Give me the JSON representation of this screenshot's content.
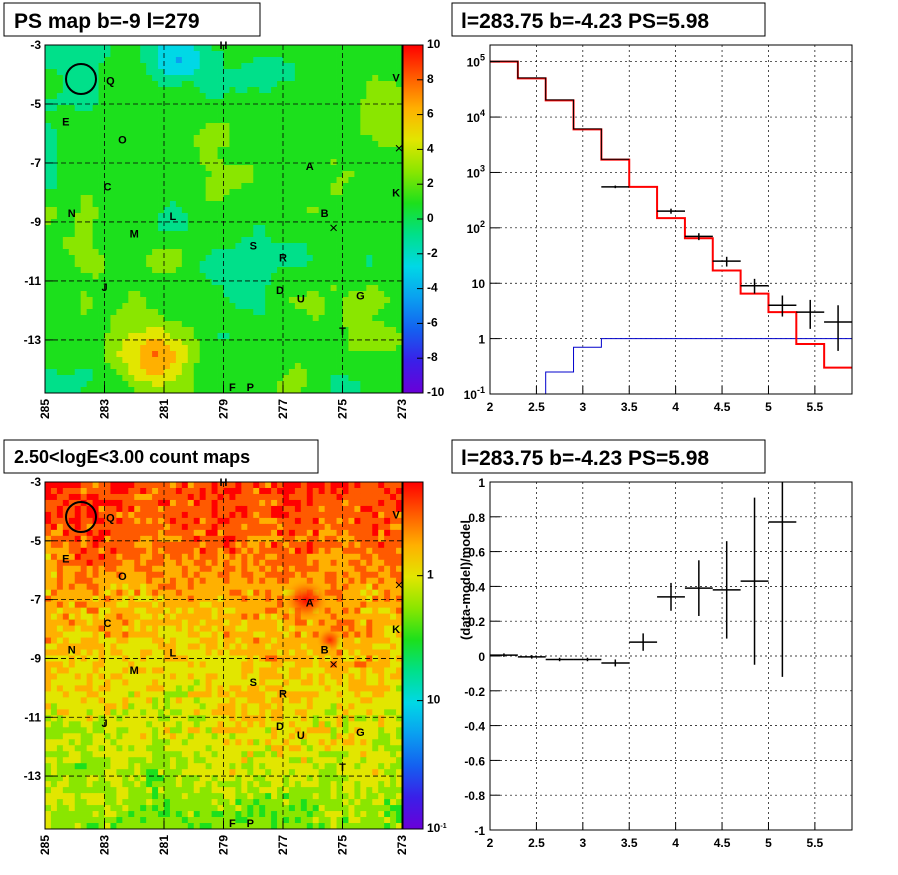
{
  "colors": {
    "hist_data": "#000000",
    "hist_model": "#ff0000",
    "hist_bg": "#0000cc",
    "palette": [
      "#6a00d8",
      "#3a1fe8",
      "#1460f0",
      "#0a9ff0",
      "#00d8e6",
      "#00e08a",
      "#1ce01c",
      "#8ae600",
      "#e2e600",
      "#ffb000",
      "#ff5a00",
      "#ff0000"
    ]
  },
  "chart_data": [
    {
      "type": "heatmap",
      "title": "PS map b=-9 l=279",
      "x_ticks": [
        "285",
        "283",
        "281",
        "279",
        "277",
        "275",
        "273"
      ],
      "y_ticks": [
        "-3",
        "-5",
        "-7",
        "-9",
        "-11",
        "-13"
      ],
      "xlim": [
        285,
        273
      ],
      "ylim": [
        -14.8,
        -3
      ],
      "colorbar_ticks": [
        "10",
        "8",
        "6",
        "4",
        "2",
        "0",
        "-2",
        "-4",
        "-6",
        "-8",
        "-10"
      ],
      "colorbar_range": [
        -10,
        10
      ],
      "sources": [
        {
          "label": "H",
          "l": 279,
          "b": -3
        },
        {
          "label": "Q",
          "l": 282.8,
          "b": -4.2
        },
        {
          "label": "V",
          "l": 273.2,
          "b": -4.1
        },
        {
          "label": "E",
          "l": 284.3,
          "b": -5.6
        },
        {
          "label": "O",
          "l": 282.4,
          "b": -6.2
        },
        {
          "label": "A",
          "l": 276.1,
          "b": -7.1
        },
        {
          "label": "C",
          "l": 282.9,
          "b": -7.8
        },
        {
          "label": "K",
          "l": 273.2,
          "b": -8.0
        },
        {
          "label": "B",
          "l": 275.6,
          "b": -8.7
        },
        {
          "label": "N",
          "l": 284.1,
          "b": -8.7
        },
        {
          "label": "L",
          "l": 280.7,
          "b": -8.8
        },
        {
          "label": "M",
          "l": 282.0,
          "b": -9.4
        },
        {
          "label": "S",
          "l": 278.0,
          "b": -9.8
        },
        {
          "label": "R",
          "l": 277.0,
          "b": -10.2
        },
        {
          "label": "J",
          "l": 283.0,
          "b": -11.2
        },
        {
          "label": "D",
          "l": 277.1,
          "b": -11.3
        },
        {
          "label": "U",
          "l": 276.4,
          "b": -11.6
        },
        {
          "label": "G",
          "l": 274.4,
          "b": -11.5
        },
        {
          "label": "T",
          "l": 275.0,
          "b": -12.7
        },
        {
          "label": "F",
          "l": 278.7,
          "b": -14.6
        },
        {
          "label": "P",
          "l": 278.1,
          "b": -14.6
        }
      ]
    },
    {
      "type": "line",
      "title": "l=283.75 b=-4.23 PS=5.98",
      "x_ticks": [
        "2",
        "2.5",
        "3",
        "3.5",
        "4",
        "4.5",
        "5",
        "5.5"
      ],
      "y_ticks": [
        "10^-1",
        "1",
        "10",
        "10^2",
        "10^3",
        "10^4",
        "10^5"
      ],
      "y_scale": "log",
      "xlim": [
        2,
        5.9
      ],
      "ylim": [
        0.1,
        200000
      ],
      "bin_edges": [
        2.0,
        2.3,
        2.6,
        2.9,
        3.2,
        3.5,
        3.8,
        4.1,
        4.4,
        4.7,
        5.0,
        5.3,
        5.6,
        5.9
      ],
      "model_values": [
        100000,
        50000,
        20000,
        6000,
        1700,
        550,
        150,
        65,
        17,
        6.5,
        3,
        0.8,
        0.3
      ],
      "background_values": [
        0.001,
        0.05,
        0.25,
        0.7,
        1.0,
        1.0,
        1.0,
        1.0,
        1.0,
        1.0,
        1.0,
        1.0,
        1.0
      ],
      "data_points": [
        {
          "x": 3.35,
          "y": 550,
          "ylo": 520,
          "yhi": 580
        },
        {
          "x": 3.95,
          "y": 200,
          "ylo": 180,
          "yhi": 222
        },
        {
          "x": 4.25,
          "y": 70,
          "ylo": 60,
          "yhi": 80
        },
        {
          "x": 4.55,
          "y": 25,
          "ylo": 20,
          "yhi": 30
        },
        {
          "x": 4.85,
          "y": 9,
          "ylo": 6.5,
          "yhi": 12
        },
        {
          "x": 5.15,
          "y": 4,
          "ylo": 2.5,
          "yhi": 6
        },
        {
          "x": 5.45,
          "y": 3,
          "ylo": 1.5,
          "yhi": 5
        },
        {
          "x": 5.75,
          "y": 2,
          "ylo": 0.6,
          "yhi": 4
        }
      ]
    },
    {
      "type": "heatmap",
      "title": "2.50<logE<3.00 count maps",
      "x_ticks": [
        "285",
        "283",
        "281",
        "279",
        "277",
        "275",
        "273"
      ],
      "y_ticks": [
        "-3",
        "-5",
        "-7",
        "-9",
        "-11",
        "-13"
      ],
      "xlim": [
        285,
        273
      ],
      "ylim": [
        -14.8,
        -3
      ],
      "colorbar_ticks": [
        "10",
        "1",
        "10^-1"
      ],
      "colorbar_scale": "log"
    },
    {
      "type": "scatter",
      "title": "l=283.75 b=-4.23 PS=5.98",
      "ylabel": "(data-model)/model",
      "x_ticks": [
        "2",
        "2.5",
        "3",
        "3.5",
        "4",
        "4.5",
        "5",
        "5.5"
      ],
      "y_ticks": [
        "1",
        "0.8",
        "0.6",
        "0.4",
        "0.2",
        "0",
        "-0.2",
        "-0.4",
        "-0.6",
        "-0.8",
        "-1"
      ],
      "xlim": [
        2,
        5.9
      ],
      "ylim": [
        -1,
        1
      ],
      "points": [
        {
          "x": 2.15,
          "y": 0.005,
          "xerr": 0.15,
          "yerr": 0.01
        },
        {
          "x": 2.45,
          "y": -0.005,
          "xerr": 0.15,
          "yerr": 0.01
        },
        {
          "x": 2.75,
          "y": -0.02,
          "xerr": 0.15,
          "yerr": 0.01
        },
        {
          "x": 3.05,
          "y": -0.02,
          "xerr": 0.15,
          "yerr": 0.01
        },
        {
          "x": 3.35,
          "y": -0.04,
          "xerr": 0.15,
          "yerr": 0.02
        },
        {
          "x": 3.65,
          "y": 0.08,
          "xerr": 0.15,
          "yerr": 0.05
        },
        {
          "x": 3.95,
          "y": 0.34,
          "xerr": 0.15,
          "yerr": 0.08
        },
        {
          "x": 4.25,
          "y": 0.39,
          "xerr": 0.15,
          "yerr": 0.16
        },
        {
          "x": 4.55,
          "y": 0.38,
          "xerr": 0.15,
          "yerr": 0.28
        },
        {
          "x": 4.85,
          "y": 0.43,
          "xerr": 0.15,
          "yerr": 0.48
        },
        {
          "x": 5.15,
          "y": 0.77,
          "xerr": 0.15,
          "yerr": 0.89
        }
      ]
    }
  ]
}
